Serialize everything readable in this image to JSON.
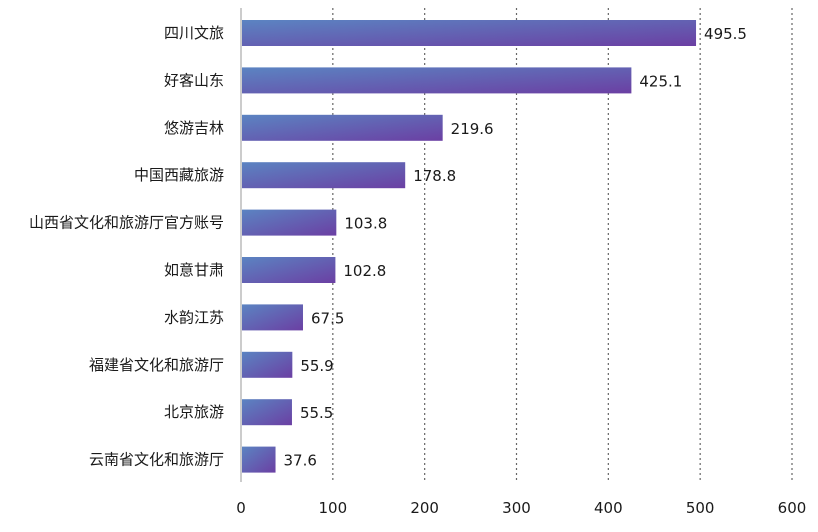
{
  "colors": {
    "bar_start": "#5b84c2",
    "bar_end": "#6b3fa3",
    "grid": "#666666",
    "axis": "#999999",
    "text": "#1a1a1a"
  },
  "chart_data": {
    "type": "bar",
    "orientation": "horizontal",
    "title": "",
    "xlabel": "",
    "ylabel": "",
    "categories": [
      "四川文旅",
      "好客山东",
      "悠游吉林",
      "中国西藏旅游",
      "山西省文化和旅游厅官方账号",
      "如意甘肃",
      "水韵江苏",
      "福建省文化和旅游厅",
      "北京旅游",
      "云南省文化和旅游厅"
    ],
    "values": [
      495.5,
      425.1,
      219.6,
      178.8,
      103.8,
      102.8,
      67.5,
      55.9,
      55.5,
      37.6
    ],
    "value_labels": [
      "495.5",
      "425.1",
      "219.6",
      "178.8",
      "103.8",
      "102.8",
      "67.5",
      "55.9",
      "55.5",
      "37.6"
    ],
    "xlim": [
      0,
      600
    ],
    "xticks": [
      0,
      100,
      200,
      300,
      400,
      500,
      600
    ],
    "xtick_labels": [
      "0",
      "100",
      "200",
      "300",
      "400",
      "500",
      "600"
    ],
    "grid": "vertical-dotted",
    "legend": "none"
  }
}
